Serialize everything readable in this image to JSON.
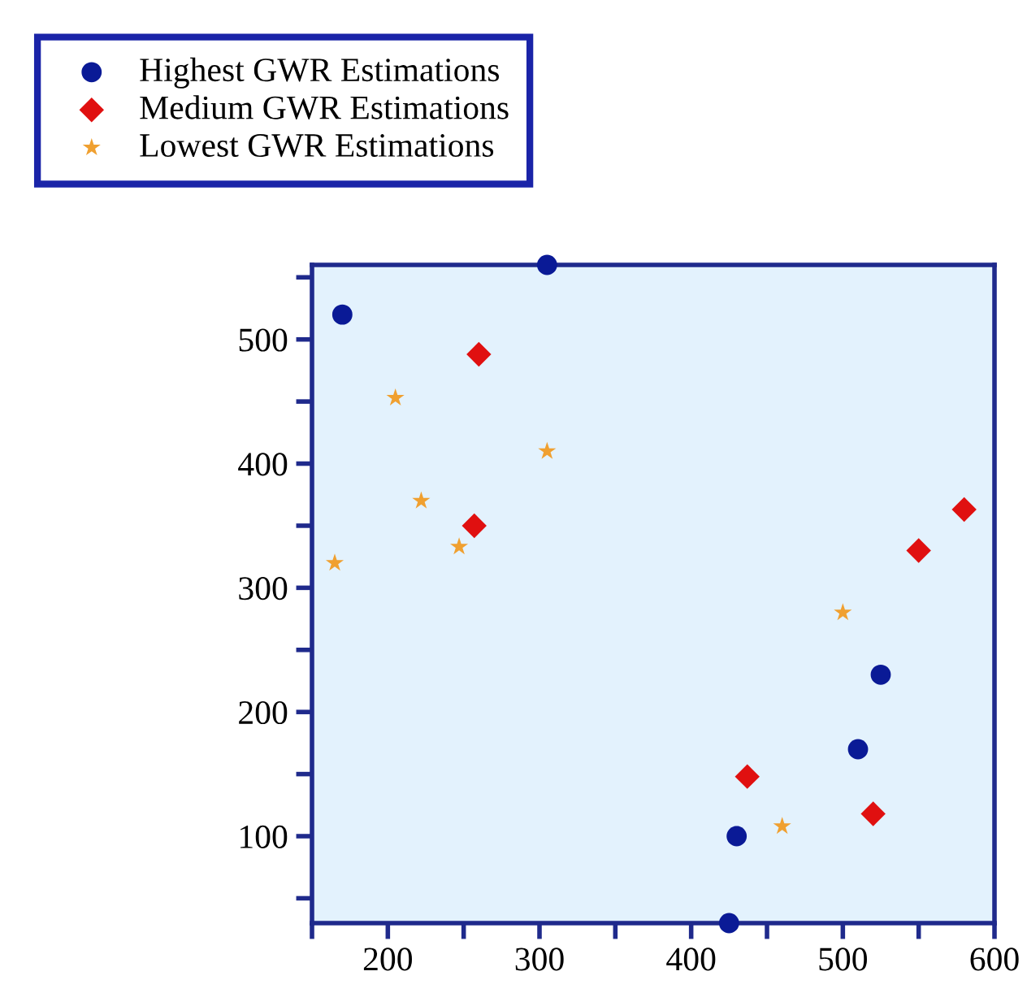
{
  "chart_data": {
    "type": "scatter",
    "series": [
      {
        "name": "Highest GWR Estimations",
        "color": "#0a1a96",
        "marker": "circle",
        "x": [
          170,
          305,
          425,
          430,
          510,
          525
        ],
        "values": [
          520,
          560,
          30,
          100,
          170,
          230
        ]
      },
      {
        "name": "Medium GWR Estimations",
        "color": "#e01010",
        "marker": "diamond",
        "x": [
          260,
          257,
          437,
          520,
          550,
          580
        ],
        "values": [
          488,
          350,
          148,
          118,
          330,
          363
        ]
      },
      {
        "name": "Lowest GWR Estimations",
        "color": "#f0a030",
        "marker": "star",
        "x": [
          165,
          205,
          222,
          247,
          305,
          500,
          460
        ],
        "values": [
          320,
          453,
          370,
          333,
          410,
          280,
          108
        ]
      }
    ],
    "xlim": [
      150,
      600
    ],
    "ylim": [
      30,
      560
    ],
    "xticks": [
      {
        "value": 150,
        "label": null
      },
      200,
      {
        "value": 250,
        "label": null
      },
      300,
      {
        "value": 350,
        "label": null
      },
      400,
      {
        "value": 450,
        "label": null
      },
      500,
      {
        "value": 550,
        "label": null
      },
      600
    ],
    "yticks": [
      {
        "value": 50,
        "label": null
      },
      100,
      {
        "value": 150,
        "label": null
      },
      200,
      {
        "value": 250,
        "label": null
      },
      300,
      {
        "value": 350,
        "label": null
      },
      400,
      {
        "value": 450,
        "label": null
      },
      500,
      {
        "value": 550,
        "label": null
      }
    ],
    "grid": false,
    "legend": "top left"
  }
}
